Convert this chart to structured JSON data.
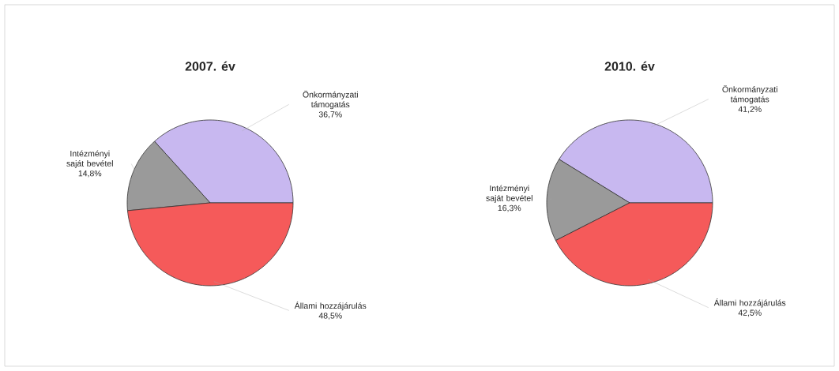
{
  "chart_data": [
    {
      "type": "pie",
      "title": "2007. év",
      "categories": [
        "Önkormányzati támogatás",
        "Intézményi saját bevétel",
        "Állami hozzájárulás"
      ],
      "values": [
        36.7,
        14.8,
        48.5
      ],
      "colors": [
        "#c8b8f0",
        "#9a9a9a",
        "#f55a5a"
      ],
      "value_labels": [
        "36,7%",
        "14,8%",
        "48,5%"
      ]
    },
    {
      "type": "pie",
      "title": "2010. év",
      "categories": [
        "Önkormányzati támogatás",
        "Intézményi saját bevétel",
        "Állami hozzájárulás"
      ],
      "values": [
        41.2,
        16.3,
        42.5
      ],
      "colors": [
        "#c8b8f0",
        "#9a9a9a",
        "#f55a5a"
      ],
      "value_labels": [
        "41,2%",
        "16,3%",
        "42,5%"
      ]
    }
  ]
}
